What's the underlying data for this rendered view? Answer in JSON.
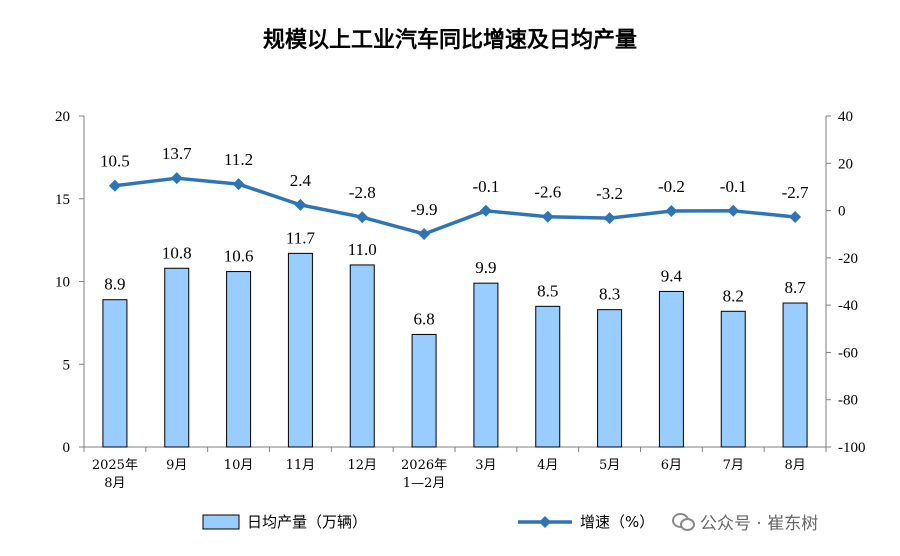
{
  "chart_data": {
    "type": "bar+line",
    "title": "规模以上工业汽车同比增速及日均产量",
    "categories": [
      [
        "2025年",
        "8月"
      ],
      [
        "9月"
      ],
      [
        "10月"
      ],
      [
        "11月"
      ],
      [
        "12月"
      ],
      [
        "2026年",
        "1—2月"
      ],
      [
        "3月"
      ],
      [
        "4月"
      ],
      [
        "5月"
      ],
      [
        "6月"
      ],
      [
        "7月"
      ],
      [
        "8月"
      ]
    ],
    "series": [
      {
        "name": "日均产量（万辆）",
        "type": "bar",
        "axis": "left",
        "color": "#99CCFF",
        "values": [
          8.9,
          10.8,
          10.6,
          11.7,
          11.0,
          6.8,
          9.9,
          8.5,
          8.3,
          9.4,
          8.2,
          8.7
        ],
        "labels": [
          "8.9",
          "10.8",
          "10.6",
          "11.7",
          "11.0",
          "6.8",
          "9.9",
          "8.5",
          "8.3",
          "9.4",
          "8.2",
          "8.7"
        ]
      },
      {
        "name": "增速（%）",
        "type": "line",
        "axis": "right",
        "color": "#2E75B6",
        "values": [
          10.5,
          13.7,
          11.2,
          2.4,
          -2.8,
          -9.9,
          -0.1,
          -2.6,
          -3.2,
          -0.2,
          -0.1,
          -2.7
        ],
        "labels": [
          "10.5",
          "13.7",
          "11.2",
          "2.4",
          "-2.8",
          "-9.9",
          "-0.1",
          "-2.6",
          "-3.2",
          "-0.2",
          "-0.1",
          "-2.7"
        ]
      }
    ],
    "y_left": {
      "min": 0,
      "max": 20,
      "ticks": [
        "0",
        "5",
        "10",
        "15",
        "20"
      ]
    },
    "y_right": {
      "min": -100,
      "max": 40,
      "ticks": [
        "-100",
        "-80",
        "-60",
        "-40",
        "-20",
        "0",
        "20",
        "40"
      ]
    },
    "grid": false,
    "legend": "bottom"
  },
  "watermark": {
    "icon": "wechat-icon",
    "text": "公众号 · 崔东树"
  }
}
